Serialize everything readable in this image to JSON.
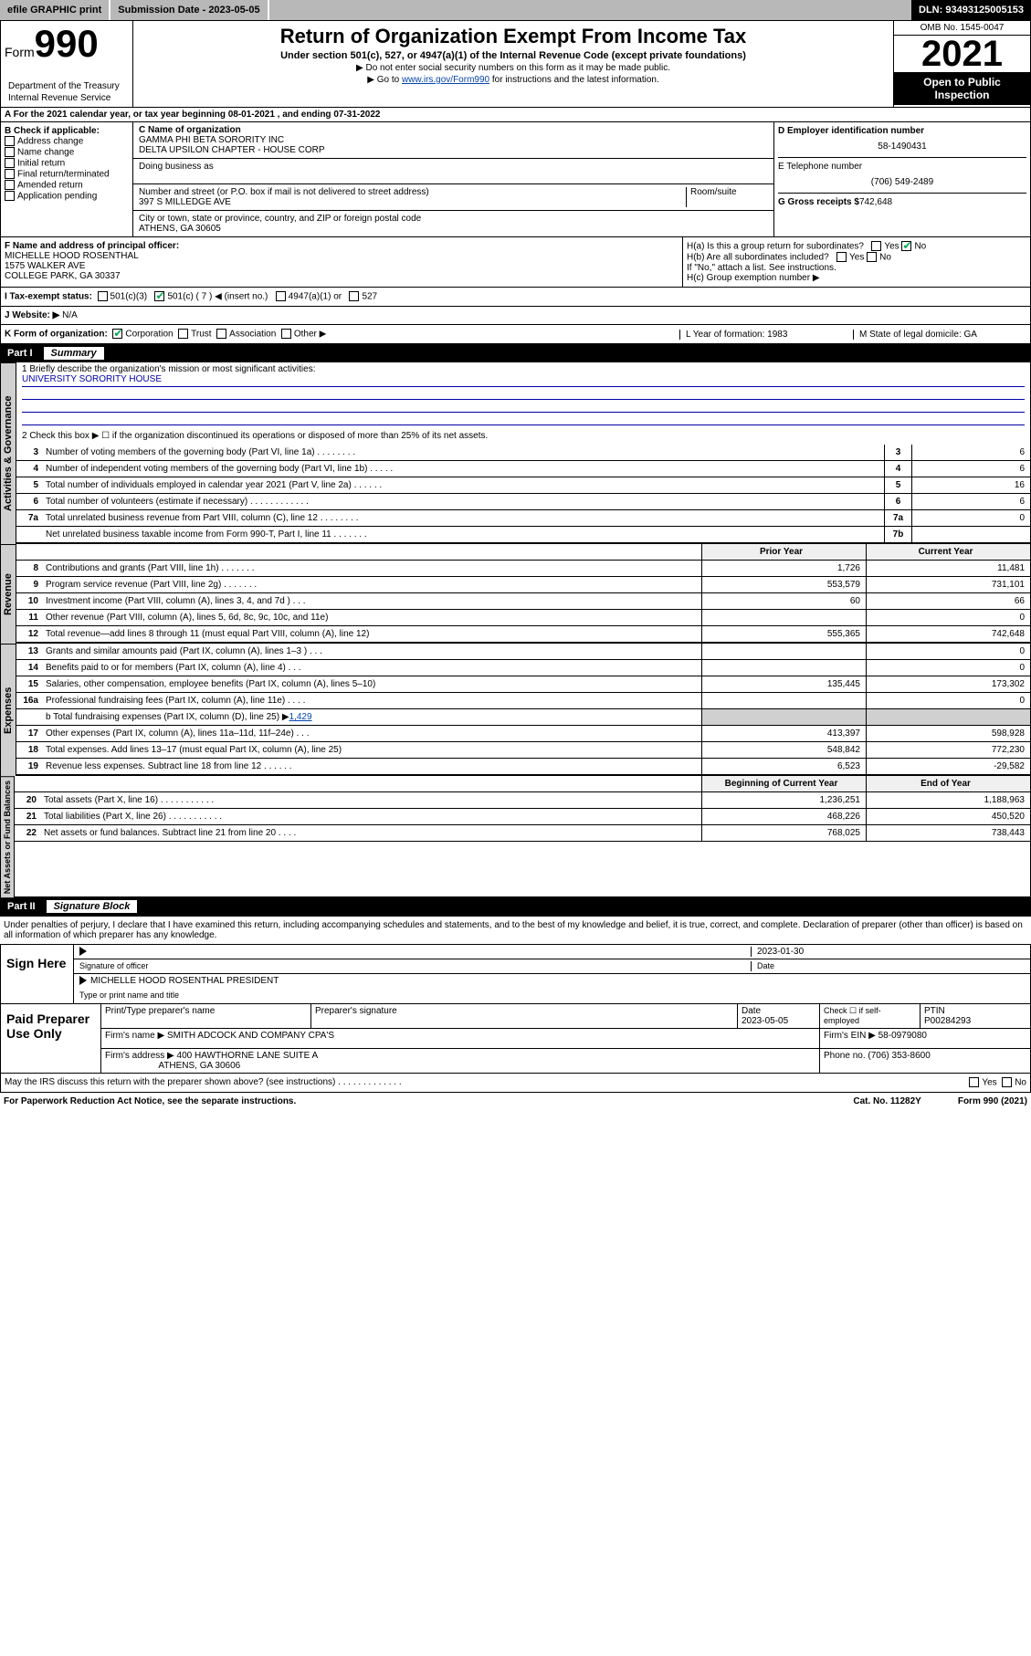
{
  "colors": {
    "black": "#000000",
    "white": "#ffffff",
    "grey_bar": "#b8b8b8",
    "link": "#0645ad",
    "check_green": "#00aa55",
    "side_grey": "#d0d0d0",
    "hdr_grey": "#f0f0f0",
    "line_blue": "#0000aa"
  },
  "top": {
    "efile": "efile GRAPHIC print",
    "sub_label": "Submission Date - 2023-05-05",
    "dln": "DLN: 93493125005153"
  },
  "header": {
    "form_word": "Form",
    "form_no": "990",
    "title": "Return of Organization Exempt From Income Tax",
    "subtitle": "Under section 501(c), 527, or 4947(a)(1) of the Internal Revenue Code (except private foundations)",
    "note1_prefix": "▶ Do not enter social security numbers on this form as it may be made public.",
    "note2_prefix": "▶ Go to ",
    "note2_link": "www.irs.gov/Form990",
    "note2_suffix": " for instructions and the latest information.",
    "omb": "OMB No. 1545-0047",
    "year": "2021",
    "open": "Open to Public Inspection",
    "dept": "Department of the Treasury",
    "irs": "Internal Revenue Service"
  },
  "line_a": "A For the 2021 calendar year, or tax year beginning 08-01-2021   , and ending 07-31-2022",
  "col_b": {
    "hdr": "B Check if applicable:",
    "items": [
      "Address change",
      "Name change",
      "Initial return",
      "Final return/terminated",
      "Amended return",
      "Application pending"
    ]
  },
  "col_c": {
    "name_lbl": "C Name of organization",
    "name1": "GAMMA PHI BETA SORORITY INC",
    "name2": "DELTA UPSILON CHAPTER - HOUSE CORP",
    "dba_lbl": "Doing business as",
    "addr_lbl": "Number and street (or P.O. box if mail is not delivered to street address)",
    "room_lbl": "Room/suite",
    "addr": "397 S MILLEDGE AVE",
    "city_lbl": "City or town, state or province, country, and ZIP or foreign postal code",
    "city": "ATHENS, GA  30605"
  },
  "col_d": {
    "ein_lbl": "D Employer identification number",
    "ein": "58-1490431",
    "phone_lbl": "E Telephone number",
    "phone": "(706) 549-2489",
    "gross_lbl": "G Gross receipts $",
    "gross": "742,648"
  },
  "f": {
    "lbl": "F Name and address of principal officer:",
    "name": "MICHELLE HOOD ROSENTHAL",
    "addr1": "1575 WALKER AVE",
    "addr2": "COLLEGE PARK, GA  30337"
  },
  "h": {
    "a": "H(a)  Is this a group return for subordinates?",
    "b": "H(b)  Are all subordinates included?",
    "yes": "Yes",
    "no": "No",
    "attach": "If \"No,\" attach a list. See instructions.",
    "c": "H(c)  Group exemption number ▶"
  },
  "i": {
    "lbl": "I   Tax-exempt status:",
    "o1": "501(c)(3)",
    "o2": "501(c) ( 7 ) ◀ (insert no.)",
    "o3": "4947(a)(1) or",
    "o4": "527"
  },
  "j": {
    "lbl": "J   Website: ▶",
    "val": "N/A"
  },
  "k": {
    "lbl": "K Form of organization:",
    "o1": "Corporation",
    "o2": "Trust",
    "o3": "Association",
    "o4": "Other ▶",
    "l": "L Year of formation: 1983",
    "m": "M State of legal domicile: GA"
  },
  "part1": {
    "pt": "Part I",
    "title": "Summary"
  },
  "summary": {
    "s1_lbl": "1  Briefly describe the organization's mission or most significant activities:",
    "s1_val": "UNIVERSITY SORORITY HOUSE",
    "s2": "2   Check this box ▶ ☐  if the organization discontinued its operations or disposed of more than 25% of its net assets.",
    "rows_small": [
      {
        "n": "3",
        "t": "Number of voting members of the governing body (Part VI, line 1a)   .    .    .    .    .    .    .    .",
        "bn": "3",
        "v": "6"
      },
      {
        "n": "4",
        "t": "Number of independent voting members of the governing body (Part VI, line 1b)  .    .    .    .    .",
        "bn": "4",
        "v": "6"
      },
      {
        "n": "5",
        "t": "Total number of individuals employed in calendar year 2021 (Part V, line 2a)   .    .    .    .    .    .",
        "bn": "5",
        "v": "16"
      },
      {
        "n": "6",
        "t": "Total number of volunteers (estimate if necessary)  .    .    .    .    .    .    .    .    .    .    .    .",
        "bn": "6",
        "v": "6"
      },
      {
        "n": "7a",
        "t": "Total unrelated business revenue from Part VIII, column (C), line 12   .    .    .    .    .    .    .    .",
        "bn": "7a",
        "v": "0"
      },
      {
        "n": "",
        "t": "Net unrelated business taxable income from Form 990-T, Part I, line 11   .    .    .    .    .    .    .",
        "bn": "7b",
        "v": ""
      }
    ],
    "col_hdr_prior": "Prior Year",
    "col_hdr_curr": "Current Year",
    "revenue": [
      {
        "n": "8",
        "t": "Contributions and grants (Part VIII, line 1h)   .    .    .    .    .    .    .",
        "p": "1,726",
        "c": "11,481"
      },
      {
        "n": "9",
        "t": "Program service revenue (Part VIII, line 2g)   .    .    .    .    .    .    .",
        "p": "553,579",
        "c": "731,101"
      },
      {
        "n": "10",
        "t": "Investment income (Part VIII, column (A), lines 3, 4, and 7d )   .    .    .",
        "p": "60",
        "c": "66"
      },
      {
        "n": "11",
        "t": "Other revenue (Part VIII, column (A), lines 5, 6d, 8c, 9c, 10c, and 11e)",
        "p": "",
        "c": "0"
      },
      {
        "n": "12",
        "t": "Total revenue—add lines 8 through 11 (must equal Part VIII, column (A), line 12)",
        "p": "555,365",
        "c": "742,648"
      }
    ],
    "expenses": [
      {
        "n": "13",
        "t": "Grants and similar amounts paid (Part IX, column (A), lines 1–3 )   .    .    .",
        "p": "",
        "c": "0"
      },
      {
        "n": "14",
        "t": "Benefits paid to or for members (Part IX, column (A), line 4)   .    .    .",
        "p": "",
        "c": "0"
      },
      {
        "n": "15",
        "t": "Salaries, other compensation, employee benefits (Part IX, column (A), lines 5–10)",
        "p": "135,445",
        "c": "173,302"
      },
      {
        "n": "16a",
        "t": "Professional fundraising fees (Part IX, column (A), line 11e)   .    .    .    .",
        "p": "",
        "c": "0"
      }
    ],
    "s16b_pre": "b  Total fundraising expenses (Part IX, column (D), line 25) ▶",
    "s16b_val": "1,429",
    "expenses2": [
      {
        "n": "17",
        "t": "Other expenses (Part IX, column (A), lines 11a–11d, 11f–24e)   .    .    .",
        "p": "413,397",
        "c": "598,928"
      },
      {
        "n": "18",
        "t": "Total expenses. Add lines 13–17 (must equal Part IX, column (A), line 25)",
        "p": "548,842",
        "c": "772,230"
      },
      {
        "n": "19",
        "t": "Revenue less expenses. Subtract line 18 from line 12   .    .    .    .    .    .",
        "p": "6,523",
        "c": "-29,582"
      }
    ],
    "col_hdr_begin": "Beginning of Current Year",
    "col_hdr_end": "End of Year",
    "netassets": [
      {
        "n": "20",
        "t": "Total assets (Part X, line 16)   .    .    .    .    .    .    .    .    .    .    .",
        "p": "1,236,251",
        "c": "1,188,963"
      },
      {
        "n": "21",
        "t": "Total liabilities (Part X, line 26)   .    .    .    .    .    .    .    .    .    .    .",
        "p": "468,226",
        "c": "450,520"
      },
      {
        "n": "22",
        "t": "Net assets or fund balances. Subtract line 21 from line 20   .    .    .    .",
        "p": "768,025",
        "c": "738,443"
      }
    ]
  },
  "sides": {
    "gov": "Activities & Governance",
    "rev": "Revenue",
    "exp": "Expenses",
    "net": "Net Assets or Fund Balances"
  },
  "part2": {
    "pt": "Part II",
    "title": "Signature Block"
  },
  "penalty": "Under penalties of perjury, I declare that I have examined this return, including accompanying schedules and statements, and to the best of my knowledge and belief, it is true, correct, and complete. Declaration of preparer (other than officer) is based on all information of which preparer has any knowledge.",
  "sign": {
    "here": "Sign Here",
    "sig_lbl": "Signature of officer",
    "date_lbl": "Date",
    "date": "2023-01-30",
    "name": "MICHELLE HOOD ROSENTHAL  PRESIDENT",
    "name_lbl": "Type or print name and title"
  },
  "paid": {
    "title": "Paid Preparer Use Only",
    "h1": "Print/Type preparer's name",
    "h2": "Preparer's signature",
    "h3": "Date",
    "h3v": "2023-05-05",
    "h4": "Check ☐ if self-employed",
    "h5": "PTIN",
    "h5v": "P00284293",
    "firm_lbl": "Firm's name    ▶",
    "firm": "SMITH ADCOCK AND COMPANY CPA'S",
    "ein_lbl": "Firm's EIN ▶",
    "ein": "58-0979080",
    "addr_lbl": "Firm's address ▶",
    "addr1": "400 HAWTHORNE LANE SUITE A",
    "addr2": "ATHENS, GA  30606",
    "phone_lbl": "Phone no.",
    "phone": "(706) 353-8600"
  },
  "discuss": {
    "txt": "May the IRS discuss this return with the preparer shown above? (see instructions)   .    .    .    .    .    .    .    .    .    .    .    .    .",
    "yes": "Yes",
    "no": "No"
  },
  "footer": {
    "left": "For Paperwork Reduction Act Notice, see the separate instructions.",
    "mid": "Cat. No. 11282Y",
    "right": "Form 990 (2021)"
  }
}
